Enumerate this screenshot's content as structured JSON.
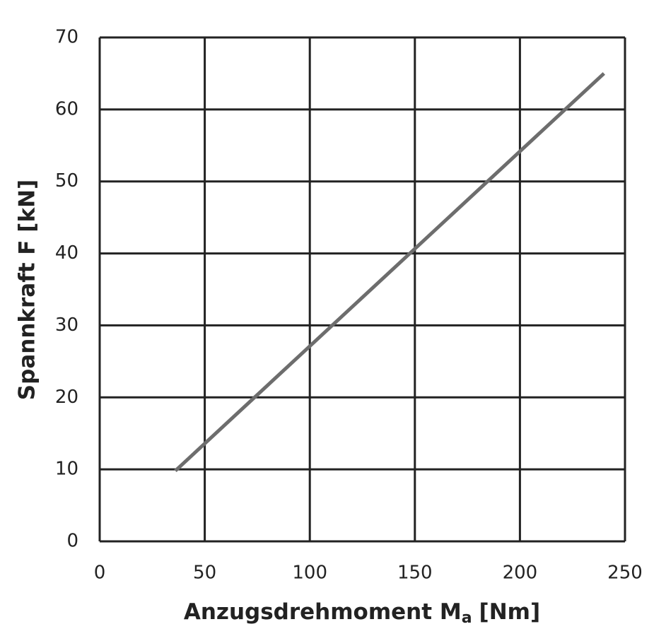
{
  "chart_data": {
    "type": "line",
    "xlabel": [
      "Anzugsdrehmoment M",
      "a",
      "[Nm]"
    ],
    "ylabel": "Spannkraft F [kN]",
    "x": [
      36,
      240
    ],
    "values": [
      9.8,
      65
    ],
    "color": "#6d6d6d",
    "xlim": [
      0,
      250
    ],
    "xticks": [
      0,
      50,
      100,
      150,
      200,
      250
    ],
    "ylim": [
      0,
      70
    ],
    "yticks": [
      0,
      10,
      20,
      30,
      40,
      50,
      60,
      70
    ],
    "grid": true,
    "grid_color": "#222222"
  }
}
